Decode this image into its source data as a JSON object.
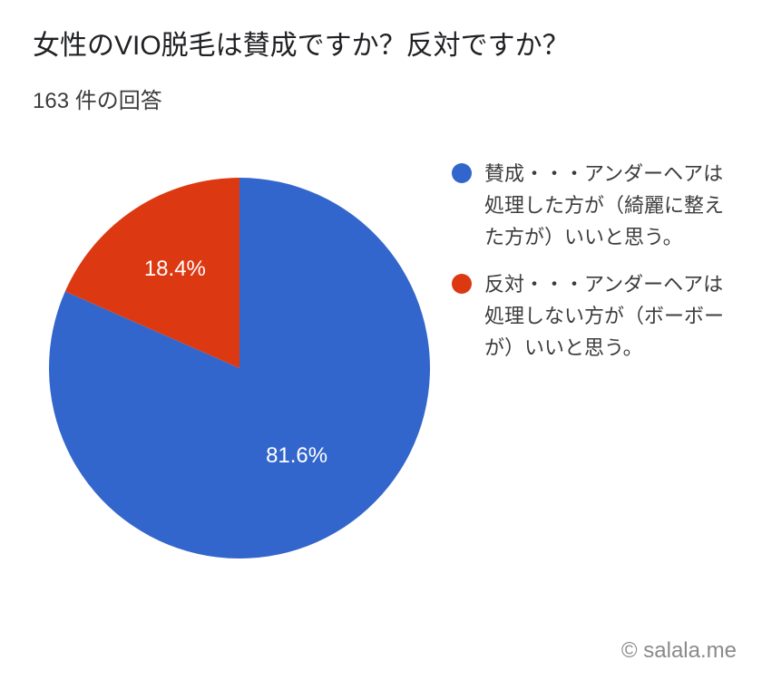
{
  "title": "女性のVIO脱毛は賛成ですか？反対ですか？",
  "subtitle": "163 件の回答",
  "chart": {
    "type": "pie",
    "background_color": "#ffffff",
    "radius": 210,
    "slices": [
      {
        "label": "賛成・・・アンダーヘアは処理した方が（綺麗に整えた方が）いいと思う。",
        "value": 81.6,
        "display": "81.6%",
        "color": "#3366cc"
      },
      {
        "label": "反対・・・アンダーヘアは処理しない方が（ボーボーが）いいと思う。",
        "value": 18.4,
        "display": "18.4%",
        "color": "#dc3912"
      }
    ],
    "start_angle_deg": -90,
    "label_fontsize": 24,
    "label_color": "#ffffff",
    "legend": {
      "position": "right",
      "fontsize": 22,
      "text_color": "#3c3c3c",
      "dot_radius": 11
    }
  },
  "credit": "© salala.me"
}
